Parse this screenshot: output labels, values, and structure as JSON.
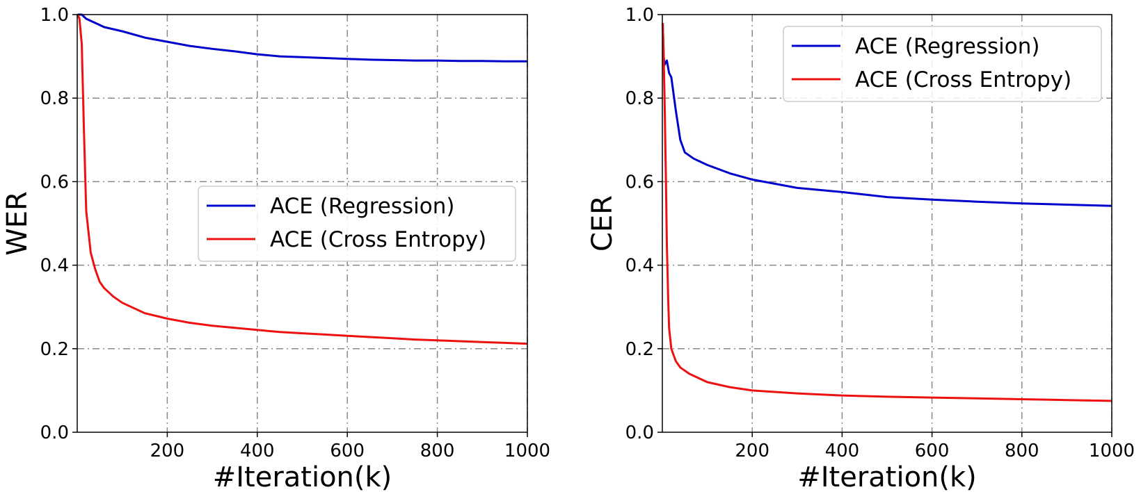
{
  "chart_data": [
    {
      "type": "line",
      "xlabel": "#Iteration(k)",
      "ylabel": "WER",
      "xlim": [
        0,
        1000
      ],
      "ylim": [
        0.0,
        1.0
      ],
      "xticks": [
        "200",
        "400",
        "600",
        "800",
        "1000"
      ],
      "yticks": [
        "0.0",
        "0.2",
        "0.4",
        "0.6",
        "0.8",
        "1.0"
      ],
      "grid": true,
      "legend_position": "center-right",
      "series": [
        {
          "name": "ACE (Regression)",
          "color": "#0000cc",
          "x": [
            1,
            10,
            20,
            40,
            60,
            80,
            100,
            150,
            200,
            250,
            300,
            350,
            400,
            450,
            500,
            550,
            600,
            650,
            700,
            750,
            800,
            850,
            900,
            950,
            1000
          ],
          "y": [
            1.0,
            1.0,
            0.99,
            0.98,
            0.97,
            0.965,
            0.96,
            0.945,
            0.935,
            0.925,
            0.918,
            0.912,
            0.905,
            0.9,
            0.898,
            0.896,
            0.894,
            0.892,
            0.891,
            0.89,
            0.89,
            0.889,
            0.889,
            0.888,
            0.888
          ]
        },
        {
          "name": "ACE (Cross Entropy)",
          "color": "#ee1111",
          "x": [
            1,
            5,
            10,
            15,
            20,
            30,
            40,
            50,
            60,
            80,
            100,
            150,
            200,
            250,
            300,
            350,
            400,
            450,
            500,
            550,
            600,
            650,
            700,
            750,
            800,
            850,
            900,
            950,
            1000
          ],
          "y": [
            1.0,
            0.99,
            0.93,
            0.72,
            0.53,
            0.43,
            0.39,
            0.36,
            0.345,
            0.325,
            0.31,
            0.285,
            0.272,
            0.262,
            0.255,
            0.25,
            0.245,
            0.24,
            0.237,
            0.234,
            0.231,
            0.228,
            0.225,
            0.222,
            0.22,
            0.218,
            0.216,
            0.214,
            0.212
          ]
        }
      ]
    },
    {
      "type": "line",
      "xlabel": "#Iteration(k)",
      "ylabel": "CER",
      "xlim": [
        0,
        1000
      ],
      "ylim": [
        0.0,
        1.0
      ],
      "xticks": [
        "200",
        "400",
        "600",
        "800",
        "1000"
      ],
      "yticks": [
        "0.0",
        "0.2",
        "0.4",
        "0.6",
        "0.8",
        "1.0"
      ],
      "grid": true,
      "legend_position": "top-right",
      "series": [
        {
          "name": "ACE (Regression)",
          "color": "#0000cc",
          "x": [
            1,
            3,
            5,
            10,
            15,
            20,
            30,
            40,
            50,
            70,
            100,
            150,
            200,
            250,
            300,
            400,
            500,
            600,
            700,
            800,
            900,
            1000
          ],
          "y": [
            0.98,
            0.9,
            0.88,
            0.89,
            0.86,
            0.85,
            0.77,
            0.7,
            0.67,
            0.655,
            0.64,
            0.62,
            0.605,
            0.595,
            0.585,
            0.575,
            0.563,
            0.557,
            0.552,
            0.548,
            0.545,
            0.542
          ]
        },
        {
          "name": "ACE (Cross Entropy)",
          "color": "#ee1111",
          "x": [
            1,
            3,
            5,
            8,
            10,
            13,
            15,
            20,
            30,
            40,
            60,
            80,
            100,
            150,
            200,
            300,
            400,
            500,
            600,
            700,
            800,
            900,
            1000
          ],
          "y": [
            0.98,
            0.9,
            0.8,
            0.6,
            0.45,
            0.32,
            0.25,
            0.2,
            0.17,
            0.155,
            0.14,
            0.13,
            0.12,
            0.108,
            0.1,
            0.093,
            0.088,
            0.085,
            0.083,
            0.081,
            0.079,
            0.077,
            0.075
          ]
        }
      ]
    }
  ]
}
